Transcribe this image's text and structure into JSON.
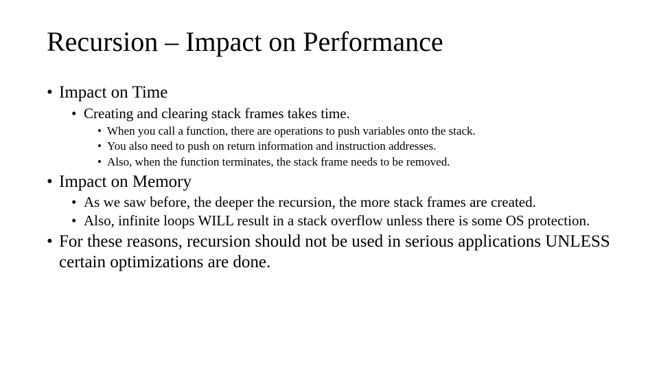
{
  "slide": {
    "title": "Recursion – Impact on Performance",
    "background_color": "#ffffff",
    "text_color": "#000000",
    "font_family": "Times New Roman",
    "title_fontsize": 40,
    "lvl1_fontsize": 25,
    "lvl2_fontsize": 21,
    "lvl3_fontsize": 17,
    "bullets": {
      "b1": "Impact on Time",
      "b1_1": "Creating and clearing stack frames takes time.",
      "b1_1_1": "When you call a function, there are operations to push variables onto the stack.",
      "b1_1_2": "You also need to push on return information and instruction addresses.",
      "b1_1_3": "Also, when the function terminates, the stack frame needs to be removed.",
      "b2": "Impact on Memory",
      "b2_1": "As we saw before, the deeper the recursion, the more stack frames are created.",
      "b2_2": "Also, infinite loops WILL result in a stack overflow unless there is some OS protection.",
      "b3": "For these reasons, recursion should not be used in serious applications UNLESS certain optimizations are done."
    }
  }
}
